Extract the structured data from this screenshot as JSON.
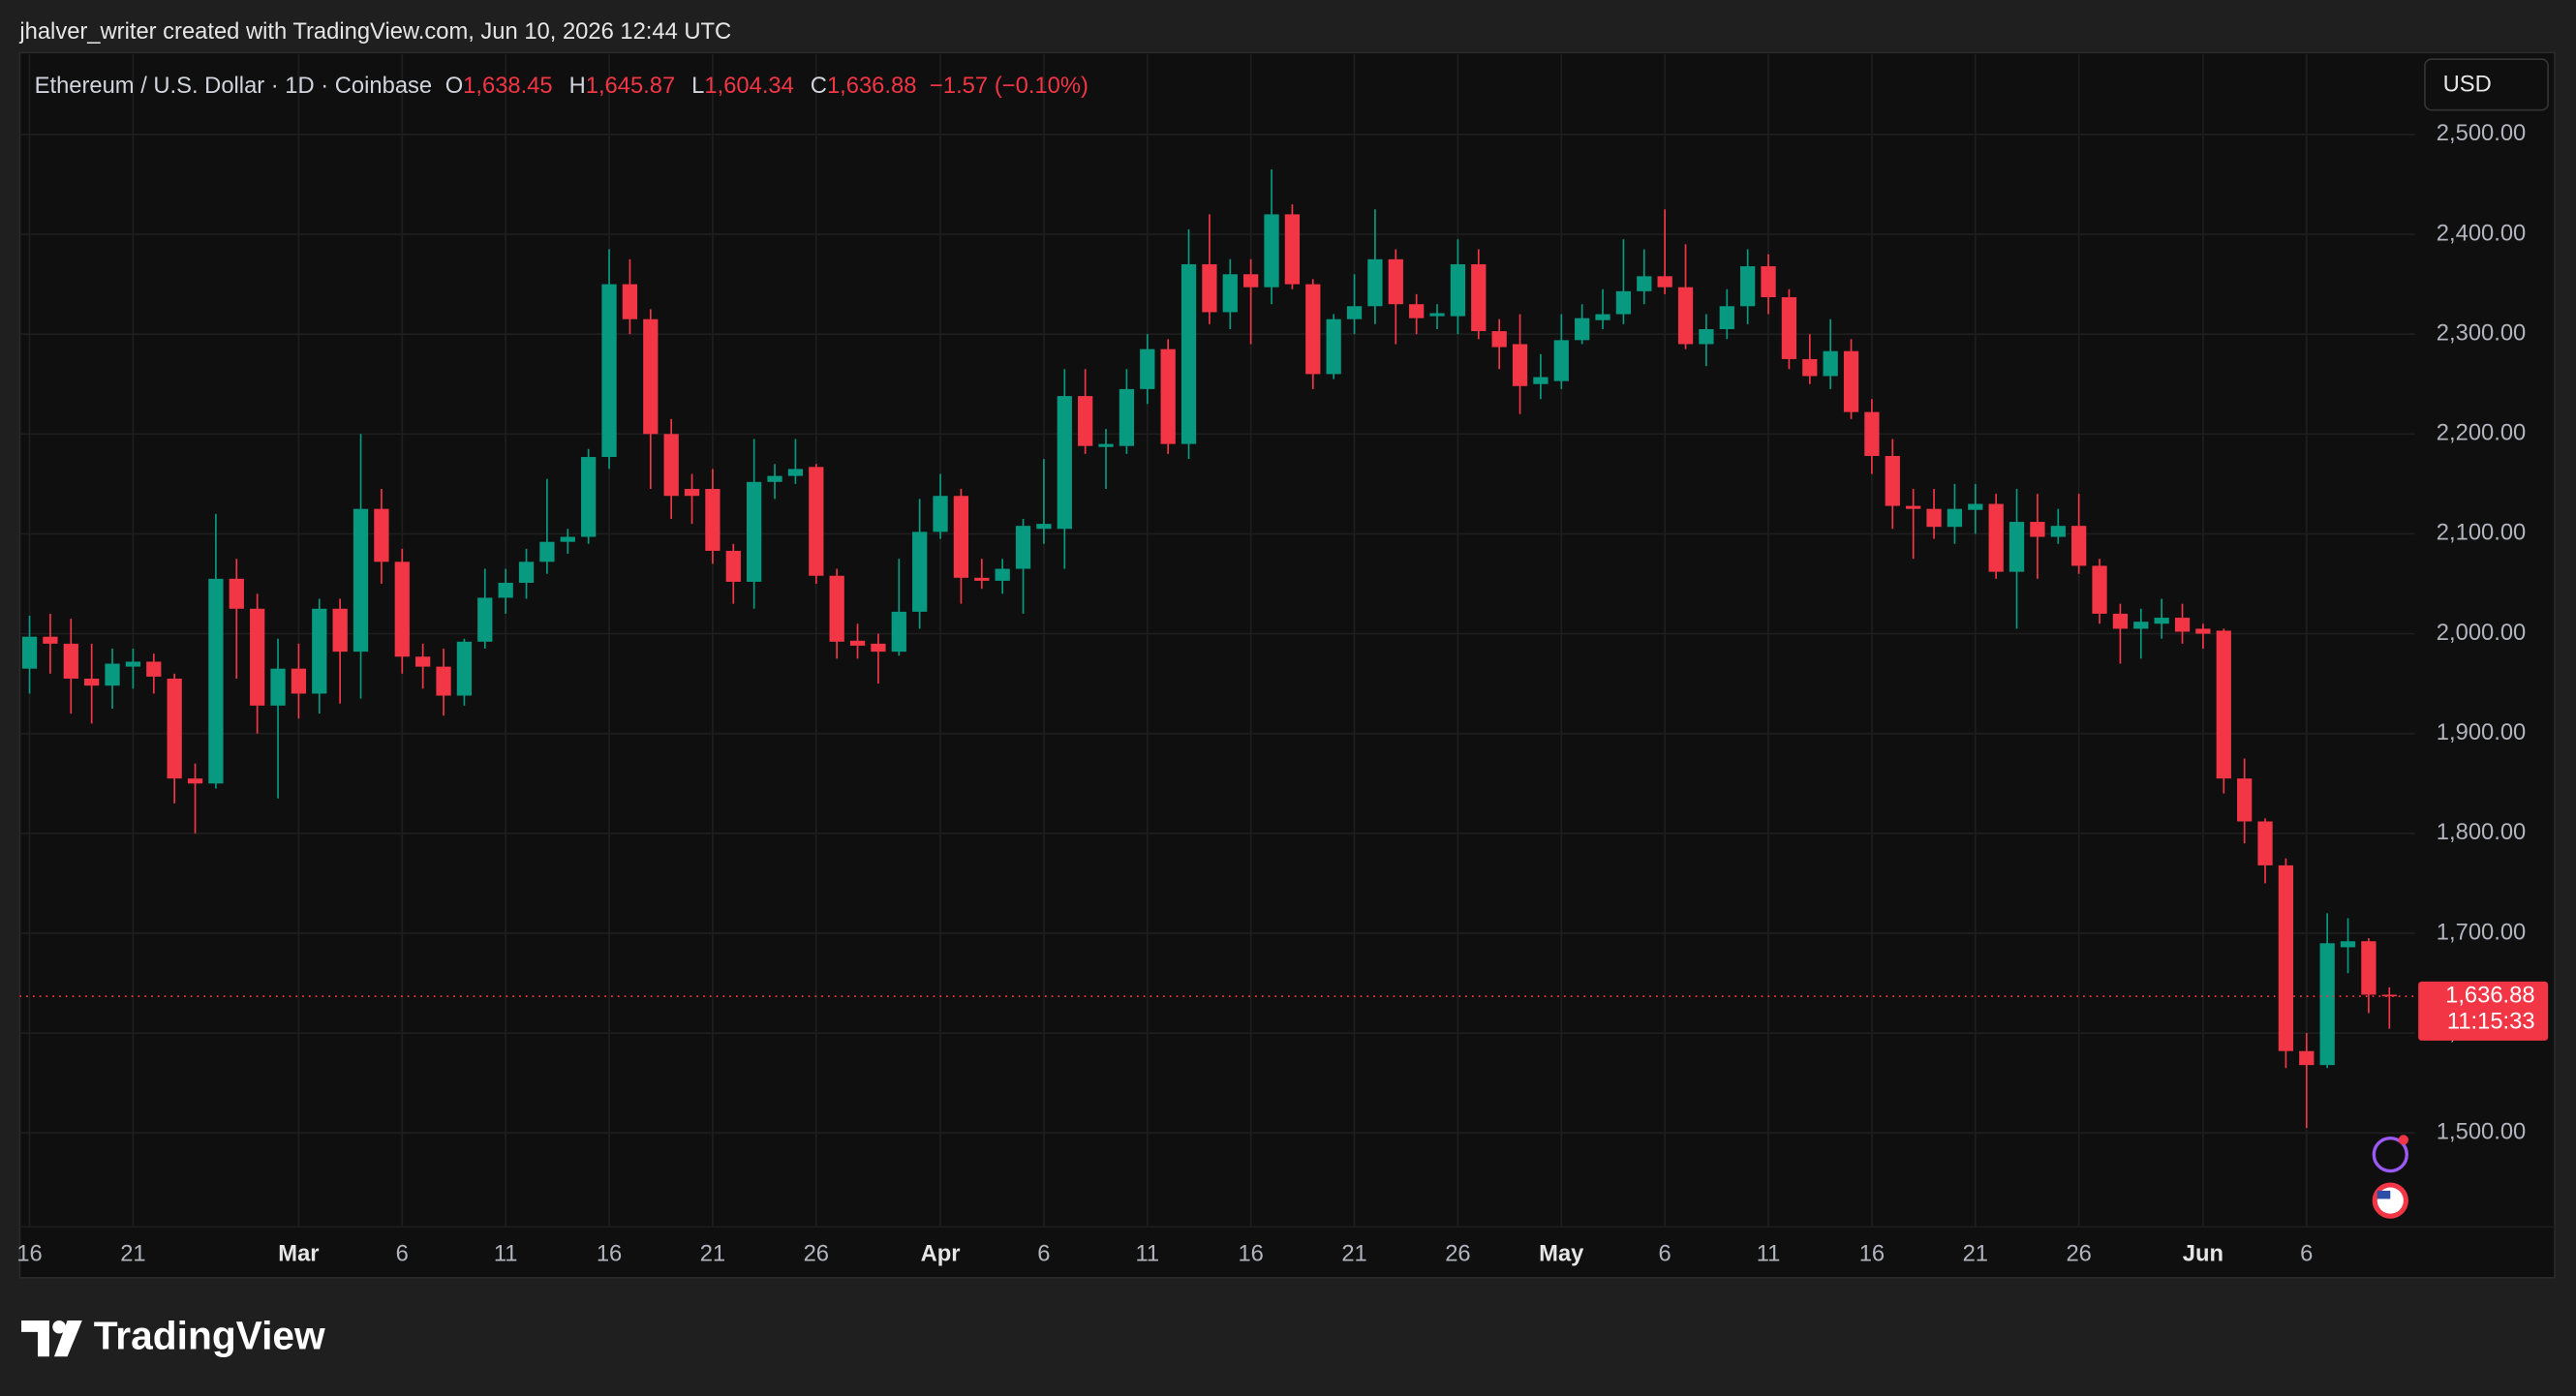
{
  "header": {
    "attribution": "jhalver_writer created with TradingView.com, Jun 10, 2026 12:44 UTC"
  },
  "toolbar": {
    "currency": "USD"
  },
  "footer": {
    "brand": "TradingView"
  },
  "chart_data": {
    "type": "candlestick",
    "legend": {
      "symbol": "Ethereum / U.S. Dollar · 1D · Coinbase",
      "items": [
        {
          "key": "O",
          "value": 1638.45,
          "label": "1,638.45"
        },
        {
          "key": "H",
          "value": 1645.87,
          "label": "1,645.87"
        },
        {
          "key": "L",
          "value": 1604.34,
          "label": "1,604.34"
        },
        {
          "key": "C",
          "value": 1636.88,
          "label": "1,636.88"
        }
      ],
      "change": {
        "value": -1.57,
        "label": "−1.57"
      },
      "change_percent": {
        "value": -0.1,
        "label": "(−0.10%)"
      }
    },
    "last_price": {
      "value": 1636.88,
      "label": "1,636.88"
    },
    "countdown": "11:15:33",
    "up_color": "#089981",
    "down_color": "#f23645",
    "categories": [
      "16",
      null,
      null,
      null,
      null,
      "21",
      null,
      null,
      null,
      null,
      null,
      null,
      null,
      "Mar",
      null,
      null,
      null,
      null,
      "6",
      null,
      null,
      null,
      null,
      "11",
      null,
      null,
      null,
      null,
      "16",
      null,
      null,
      null,
      null,
      "21",
      null,
      null,
      null,
      null,
      "26",
      null,
      null,
      null,
      null,
      null,
      "Apr",
      null,
      null,
      null,
      null,
      "6",
      null,
      null,
      null,
      null,
      "11",
      null,
      null,
      null,
      null,
      "16",
      null,
      null,
      null,
      null,
      "21",
      null,
      null,
      null,
      null,
      "26",
      null,
      null,
      null,
      null,
      "May",
      null,
      null,
      null,
      null,
      "6",
      null,
      null,
      null,
      null,
      "11",
      null,
      null,
      null,
      null,
      "16",
      null,
      null,
      null,
      null,
      "21",
      null,
      null,
      null,
      null,
      "26",
      null,
      null,
      null,
      null,
      null,
      "Jun",
      null,
      null,
      null,
      null,
      "6",
      null,
      null,
      null,
      null
    ],
    "open": [
      1965,
      1997,
      1990,
      1955,
      1948,
      1967,
      1972,
      1955,
      1855,
      1850,
      2055,
      2025,
      1928,
      1965,
      1940,
      2025,
      1982,
      2125,
      2072,
      1977,
      1967,
      1938,
      1992,
      2036,
      2051,
      2072,
      2092,
      2097,
      2177,
      2350,
      2315,
      2200,
      2145,
      2145,
      2083,
      2052,
      2152,
      2158,
      2167,
      2058,
      1993,
      1990,
      1982,
      2022,
      2102,
      2138,
      2056,
      2053,
      2065,
      2105,
      2105,
      2238,
      2187,
      2188,
      2245,
      2285,
      2190,
      2370,
      2322,
      2360,
      2347,
      2420,
      2350,
      2260,
      2315,
      2328,
      2375,
      2330,
      2318,
      2318,
      2370,
      2303,
      2290,
      2250,
      2253,
      2294,
      2314,
      2320,
      2343,
      2358,
      2347,
      2290,
      2305,
      2328,
      2368,
      2337,
      2275,
      2258,
      2283,
      2222,
      2178,
      2128,
      2125,
      2107,
      2124,
      2130,
      2062,
      2112,
      2097,
      2108,
      2068,
      2020,
      2005,
      2010,
      2016,
      2005,
      2003,
      1855,
      1812,
      1768,
      1582,
      1568,
      1686,
      1692,
      1638.45
    ],
    "high": [
      2018,
      2020,
      2015,
      1990,
      1985,
      1985,
      1980,
      1960,
      1870,
      2120,
      2075,
      2040,
      1995,
      1990,
      2035,
      2035,
      2200,
      2145,
      2085,
      1990,
      1985,
      1995,
      2065,
      2065,
      2085,
      2155,
      2105,
      2185,
      2385,
      2375,
      2325,
      2215,
      2160,
      2165,
      2090,
      2195,
      2170,
      2195,
      2170,
      2065,
      2010,
      2000,
      2075,
      2135,
      2160,
      2145,
      2075,
      2075,
      2115,
      2175,
      2265,
      2265,
      2205,
      2265,
      2300,
      2295,
      2405,
      2420,
      2375,
      2375,
      2465,
      2430,
      2355,
      2320,
      2360,
      2425,
      2385,
      2340,
      2330,
      2395,
      2385,
      2315,
      2320,
      2280,
      2320,
      2330,
      2345,
      2395,
      2385,
      2425,
      2390,
      2320,
      2345,
      2385,
      2380,
      2345,
      2300,
      2315,
      2295,
      2235,
      2195,
      2145,
      2145,
      2150,
      2150,
      2140,
      2145,
      2140,
      2125,
      2140,
      2075,
      2030,
      2025,
      2035,
      2030,
      2010,
      2005,
      1875,
      1815,
      1775,
      1600,
      1720,
      1715,
      1695,
      1645.87
    ],
    "low": [
      1940,
      1960,
      1920,
      1910,
      1925,
      1945,
      1940,
      1830,
      1800,
      1845,
      1955,
      1900,
      1835,
      1915,
      1920,
      1930,
      1935,
      2050,
      1960,
      1945,
      1918,
      1928,
      1985,
      2020,
      2035,
      2060,
      2080,
      2090,
      2165,
      2300,
      2145,
      2115,
      2110,
      2070,
      2030,
      2025,
      2135,
      2150,
      2050,
      1975,
      1975,
      1950,
      1978,
      2005,
      2095,
      2030,
      2045,
      2040,
      2020,
      2090,
      2065,
      2180,
      2145,
      2180,
      2230,
      2180,
      2175,
      2310,
      2305,
      2290,
      2330,
      2345,
      2245,
      2255,
      2300,
      2310,
      2290,
      2300,
      2305,
      2300,
      2295,
      2265,
      2220,
      2235,
      2245,
      2290,
      2305,
      2310,
      2330,
      2340,
      2285,
      2268,
      2295,
      2310,
      2320,
      2265,
      2250,
      2245,
      2215,
      2160,
      2105,
      2075,
      2095,
      2090,
      2100,
      2055,
      2005,
      2055,
      2090,
      2060,
      2010,
      1970,
      1975,
      1995,
      1990,
      1985,
      1840,
      1790,
      1750,
      1565,
      1505,
      1565,
      1660,
      1620,
      1604.34
    ],
    "close": [
      1997,
      1990,
      1955,
      1948,
      1970,
      1972,
      1957,
      1855,
      1850,
      2055,
      2025,
      1928,
      1965,
      1940,
      2025,
      1982,
      2125,
      2072,
      1977,
      1967,
      1938,
      1992,
      2036,
      2051,
      2072,
      2092,
      2097,
      2177,
      2350,
      2315,
      2200,
      2138,
      2138,
      2083,
      2052,
      2152,
      2158,
      2165,
      2058,
      1992,
      1988,
      1982,
      2022,
      2102,
      2138,
      2056,
      2053,
      2065,
      2108,
      2110,
      2238,
      2188,
      2190,
      2245,
      2285,
      2190,
      2370,
      2322,
      2360,
      2347,
      2420,
      2350,
      2260,
      2315,
      2328,
      2375,
      2330,
      2316,
      2321,
      2370,
      2303,
      2287,
      2248,
      2257,
      2294,
      2316,
      2320,
      2343,
      2358,
      2347,
      2290,
      2305,
      2328,
      2368,
      2337,
      2275,
      2258,
      2283,
      2222,
      2178,
      2128,
      2125,
      2107,
      2125,
      2130,
      2062,
      2112,
      2097,
      2108,
      2068,
      2020,
      2005,
      2012,
      2016,
      2002,
      2000,
      1855,
      1812,
      1768,
      1582,
      1568,
      1690,
      1692,
      1638.45,
      1636.88
    ],
    "ylim": [
      1355,
      2582
    ],
    "yticks": [
      {
        "value": 1500,
        "label": "1,500.00"
      },
      {
        "value": 1600,
        "label": "1,600.00"
      },
      {
        "value": 1700,
        "label": "1,700.00"
      },
      {
        "value": 1800,
        "label": "1,800.00"
      },
      {
        "value": 1900,
        "label": "1,900.00"
      },
      {
        "value": 2000,
        "label": "2,000.00"
      },
      {
        "value": 2100,
        "label": "2,100.00"
      },
      {
        "value": 2200,
        "label": "2,200.00"
      },
      {
        "value": 2300,
        "label": "2,300.00"
      },
      {
        "value": 2400,
        "label": "2,400.00"
      },
      {
        "value": 2500,
        "label": "2,500.00"
      }
    ],
    "grid": true
  }
}
